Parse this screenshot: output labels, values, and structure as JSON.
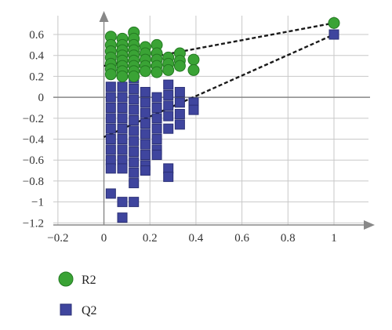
{
  "chart_data": {
    "type": "scatter",
    "title": "",
    "xlabel": "",
    "ylabel": "",
    "xlim": [
      -0.22,
      1.15
    ],
    "ylim": [
      -1.22,
      0.78
    ],
    "x_ticks": [
      -0.2,
      0,
      0.2,
      0.4,
      0.6,
      0.8,
      1
    ],
    "x_tick_labels": [
      "−0.2",
      "0",
      "0.2",
      "0.4",
      "0.6",
      "0.8",
      "1"
    ],
    "y_ticks": [
      0.6,
      0.4,
      0.2,
      0,
      -0.2,
      -0.4,
      -0.6,
      -0.8,
      -1,
      -1.2
    ],
    "y_tick_labels": [
      "0.6",
      "0.4",
      "0.2",
      "0",
      "−0.2",
      "−0.4",
      "−0.6",
      "−0.8",
      "−1",
      "−1.2"
    ],
    "grid": true,
    "legend": {
      "placement": "bottom-left"
    },
    "colors": {
      "r2_fill": "#3aa335",
      "r2_stroke": "#247a22",
      "q2_fill": "#3f459e",
      "q2_stroke": "#2b3076",
      "axis": "#888888",
      "grid": "#c8c8c8"
    },
    "series": [
      {
        "name": "R2",
        "marker": "circle",
        "points": [
          [
            0.03,
            0.58
          ],
          [
            0.03,
            0.5
          ],
          [
            0.03,
            0.44
          ],
          [
            0.03,
            0.38
          ],
          [
            0.03,
            0.32
          ],
          [
            0.03,
            0.27
          ],
          [
            0.03,
            0.22
          ],
          [
            0.08,
            0.56
          ],
          [
            0.08,
            0.5
          ],
          [
            0.08,
            0.45
          ],
          [
            0.08,
            0.4
          ],
          [
            0.08,
            0.35
          ],
          [
            0.08,
            0.3
          ],
          [
            0.08,
            0.25
          ],
          [
            0.08,
            0.2
          ],
          [
            0.13,
            0.62
          ],
          [
            0.13,
            0.56
          ],
          [
            0.13,
            0.5
          ],
          [
            0.13,
            0.45
          ],
          [
            0.13,
            0.4
          ],
          [
            0.13,
            0.35
          ],
          [
            0.13,
            0.3
          ],
          [
            0.13,
            0.25
          ],
          [
            0.13,
            0.2
          ],
          [
            0.18,
            0.48
          ],
          [
            0.18,
            0.42
          ],
          [
            0.18,
            0.36
          ],
          [
            0.18,
            0.3
          ],
          [
            0.18,
            0.25
          ],
          [
            0.23,
            0.5
          ],
          [
            0.23,
            0.42
          ],
          [
            0.23,
            0.36
          ],
          [
            0.23,
            0.3
          ],
          [
            0.23,
            0.24
          ],
          [
            0.28,
            0.38
          ],
          [
            0.28,
            0.32
          ],
          [
            0.28,
            0.26
          ],
          [
            0.33,
            0.42
          ],
          [
            0.33,
            0.35
          ],
          [
            0.33,
            0.3
          ],
          [
            0.39,
            0.36
          ],
          [
            0.39,
            0.26
          ],
          [
            1.0,
            0.71
          ]
        ]
      },
      {
        "name": "Q2",
        "marker": "square",
        "points": [
          [
            0.03,
            0.1
          ],
          [
            0.03,
            0.0
          ],
          [
            0.03,
            -0.1
          ],
          [
            0.03,
            -0.2
          ],
          [
            0.03,
            -0.3
          ],
          [
            0.03,
            -0.4
          ],
          [
            0.03,
            -0.5
          ],
          [
            0.03,
            -0.6
          ],
          [
            0.03,
            -0.68
          ],
          [
            0.03,
            -0.92
          ],
          [
            0.08,
            0.1
          ],
          [
            0.08,
            0.0
          ],
          [
            0.08,
            -0.1
          ],
          [
            0.08,
            -0.2
          ],
          [
            0.08,
            -0.3
          ],
          [
            0.08,
            -0.4
          ],
          [
            0.08,
            -0.5
          ],
          [
            0.08,
            -0.6
          ],
          [
            0.08,
            -0.68
          ],
          [
            0.08,
            -1.0
          ],
          [
            0.08,
            -1.15
          ],
          [
            0.13,
            0.18
          ],
          [
            0.13,
            0.08
          ],
          [
            0.13,
            -0.02
          ],
          [
            0.13,
            -0.12
          ],
          [
            0.13,
            -0.22
          ],
          [
            0.13,
            -0.32
          ],
          [
            0.13,
            -0.42
          ],
          [
            0.13,
            -0.52
          ],
          [
            0.13,
            -0.62
          ],
          [
            0.13,
            -0.72
          ],
          [
            0.13,
            -0.82
          ],
          [
            0.13,
            -1.0
          ],
          [
            0.18,
            0.05
          ],
          [
            0.18,
            -0.05
          ],
          [
            0.18,
            -0.15
          ],
          [
            0.18,
            -0.25
          ],
          [
            0.18,
            -0.35
          ],
          [
            0.18,
            -0.45
          ],
          [
            0.18,
            -0.55
          ],
          [
            0.18,
            -0.65
          ],
          [
            0.18,
            -0.7
          ],
          [
            0.23,
            0.0
          ],
          [
            0.23,
            -0.1
          ],
          [
            0.23,
            -0.2
          ],
          [
            0.23,
            -0.3
          ],
          [
            0.23,
            -0.4
          ],
          [
            0.23,
            -0.5
          ],
          [
            0.23,
            -0.55
          ],
          [
            0.28,
            0.12
          ],
          [
            0.28,
            0.02
          ],
          [
            0.28,
            -0.08
          ],
          [
            0.28,
            -0.18
          ],
          [
            0.28,
            -0.3
          ],
          [
            0.28,
            -0.68
          ],
          [
            0.28,
            -0.76
          ],
          [
            0.33,
            0.05
          ],
          [
            0.33,
            -0.05
          ],
          [
            0.33,
            -0.16
          ],
          [
            0.33,
            -0.26
          ],
          [
            0.39,
            -0.05
          ],
          [
            0.39,
            -0.12
          ],
          [
            1.0,
            0.6
          ]
        ]
      }
    ],
    "regression_lines": [
      {
        "series": "R2",
        "x": [
          0,
          1
        ],
        "y": [
          0.3,
          0.71
        ]
      },
      {
        "series": "Q2",
        "x": [
          0,
          1
        ],
        "y": [
          -0.38,
          0.6
        ]
      }
    ]
  }
}
